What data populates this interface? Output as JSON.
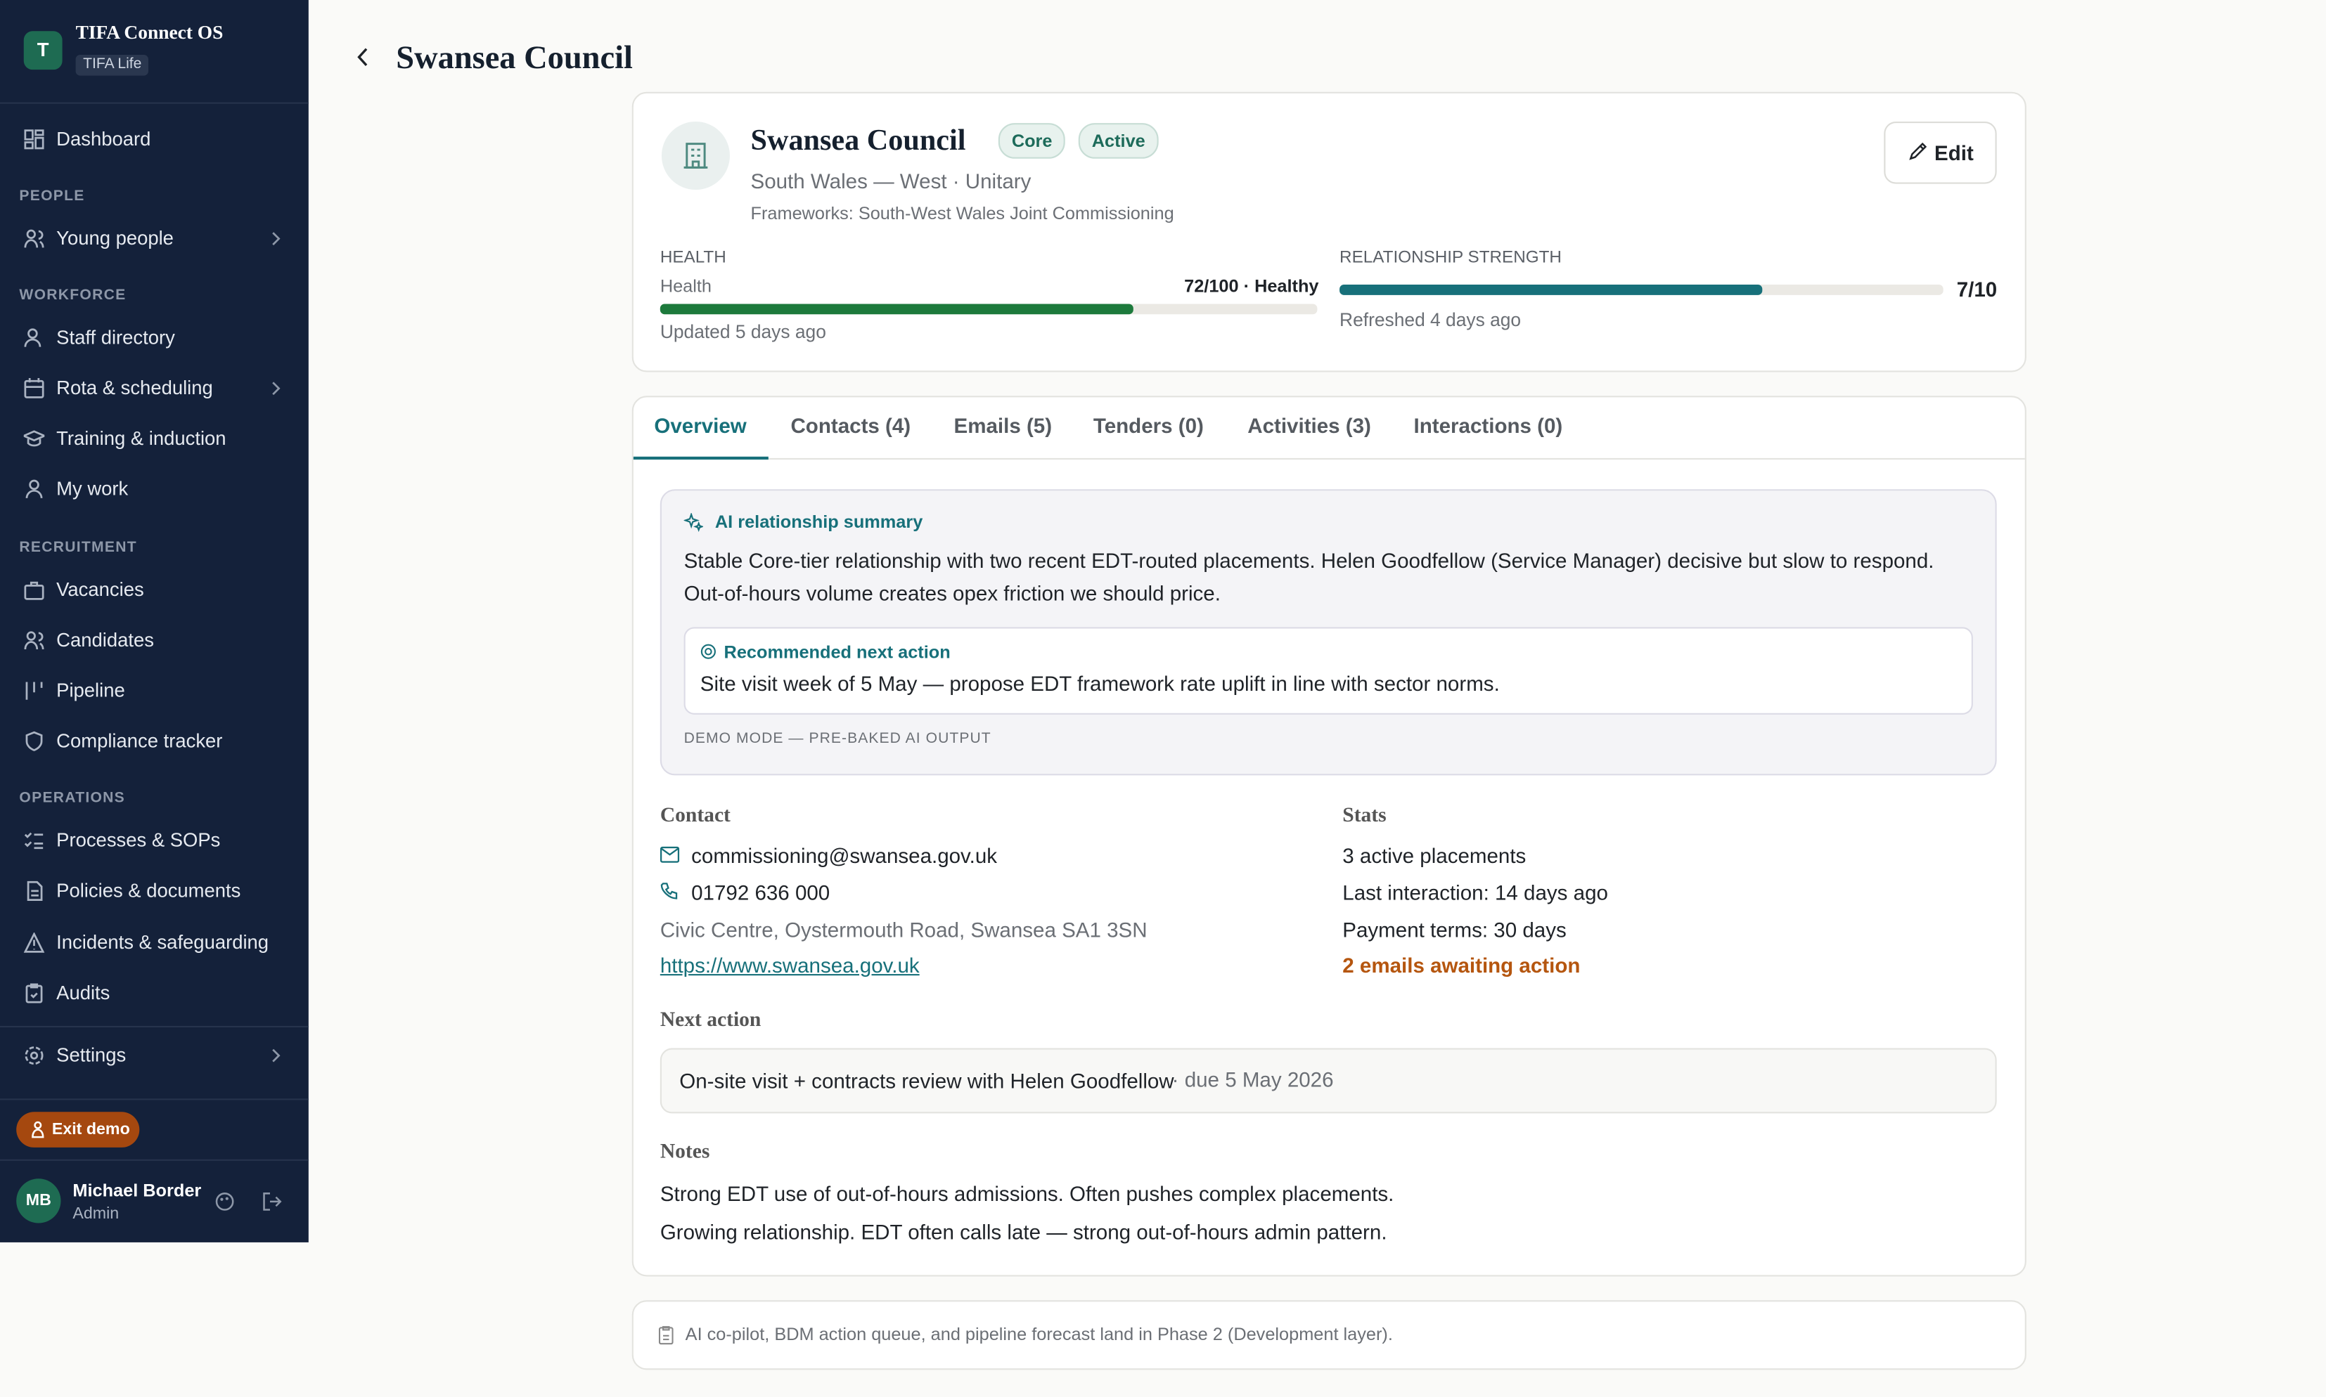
{
  "sidebar": {
    "brand": {
      "initial": "T",
      "name": "TIFA Connect OS",
      "tenant": "TIFA Life"
    },
    "dashboard": "Dashboard",
    "sections": [
      {
        "heading": "PEOPLE",
        "items": [
          "Young people"
        ]
      },
      {
        "heading": "WORKFORCE",
        "items": [
          "Staff directory",
          "Rota & scheduling",
          "Training & induction",
          "My work"
        ]
      },
      {
        "heading": "RECRUITMENT",
        "items": [
          "Vacancies",
          "Candidates",
          "Pipeline",
          "Compliance tracker"
        ]
      },
      {
        "heading": "OPERATIONS",
        "items": [
          "Processes & SOPs",
          "Policies & documents",
          "Incidents & safeguarding",
          "Audits"
        ]
      }
    ],
    "settings": "Settings",
    "exit_demo": "Exit demo",
    "user": {
      "initials": "MB",
      "name": "Michael Border",
      "role": "Admin"
    }
  },
  "header": {
    "title": "Swansea Council"
  },
  "profile": {
    "name": "Swansea Council",
    "badges": [
      "Core",
      "Active"
    ],
    "subtitle": "South Wales — West · Unitary",
    "frameworks": "Frameworks: South-West Wales Joint Commissioning",
    "edit": "Edit",
    "health": {
      "heading": "HEALTH",
      "label": "Health",
      "score_text": "72/100 · Healthy",
      "value": 72,
      "max": 100,
      "updated": "Updated 5 days ago"
    },
    "relationship": {
      "heading": "RELATIONSHIP STRENGTH",
      "score_text": "7/10",
      "value": 7,
      "max": 10,
      "updated": "Refreshed 4 days ago"
    }
  },
  "tabs": [
    "Overview",
    "Contacts (4)",
    "Emails (5)",
    "Tenders (0)",
    "Activities (3)",
    "Interactions (0)"
  ],
  "ai_summary": {
    "heading": "AI relationship summary",
    "body": "Stable Core-tier relationship with two recent EDT-routed placements. Helen Goodfellow (Service Manager) decisive but slow to respond. Out-of-hours volume creates opex friction we should price.",
    "recommendation_heading": "Recommended next action",
    "recommendation": "Site visit week of 5 May — propose EDT framework rate uplift in line with sector norms.",
    "footnote": "DEMO MODE — PRE-BAKED AI OUTPUT"
  },
  "contact": {
    "heading": "Contact",
    "email": "commissioning@swansea.gov.uk",
    "phone": "01792 636 000",
    "address": "Civic Centre, Oystermouth Road, Swansea SA1 3SN",
    "website": "https://www.swansea.gov.uk"
  },
  "stats": {
    "heading": "Stats",
    "lines": [
      "3 active placements",
      "Last interaction: 14 days ago",
      "Payment terms: 30 days"
    ],
    "alert": "2 emails awaiting action"
  },
  "next_action": {
    "heading": "Next action",
    "text": "On-site visit + contracts review with Helen Goodfellow",
    "due": " · due 5 May 2026"
  },
  "notes": {
    "heading": "Notes",
    "lines": [
      "Strong EDT use of out-of-hours admissions. Often pushes complex placements.",
      "Growing relationship. EDT often calls late — strong out-of-hours admin pattern."
    ]
  },
  "footer_note": "AI co-pilot, BDM action queue, and pipeline forecast land in Phase 2 (Development layer)."
}
